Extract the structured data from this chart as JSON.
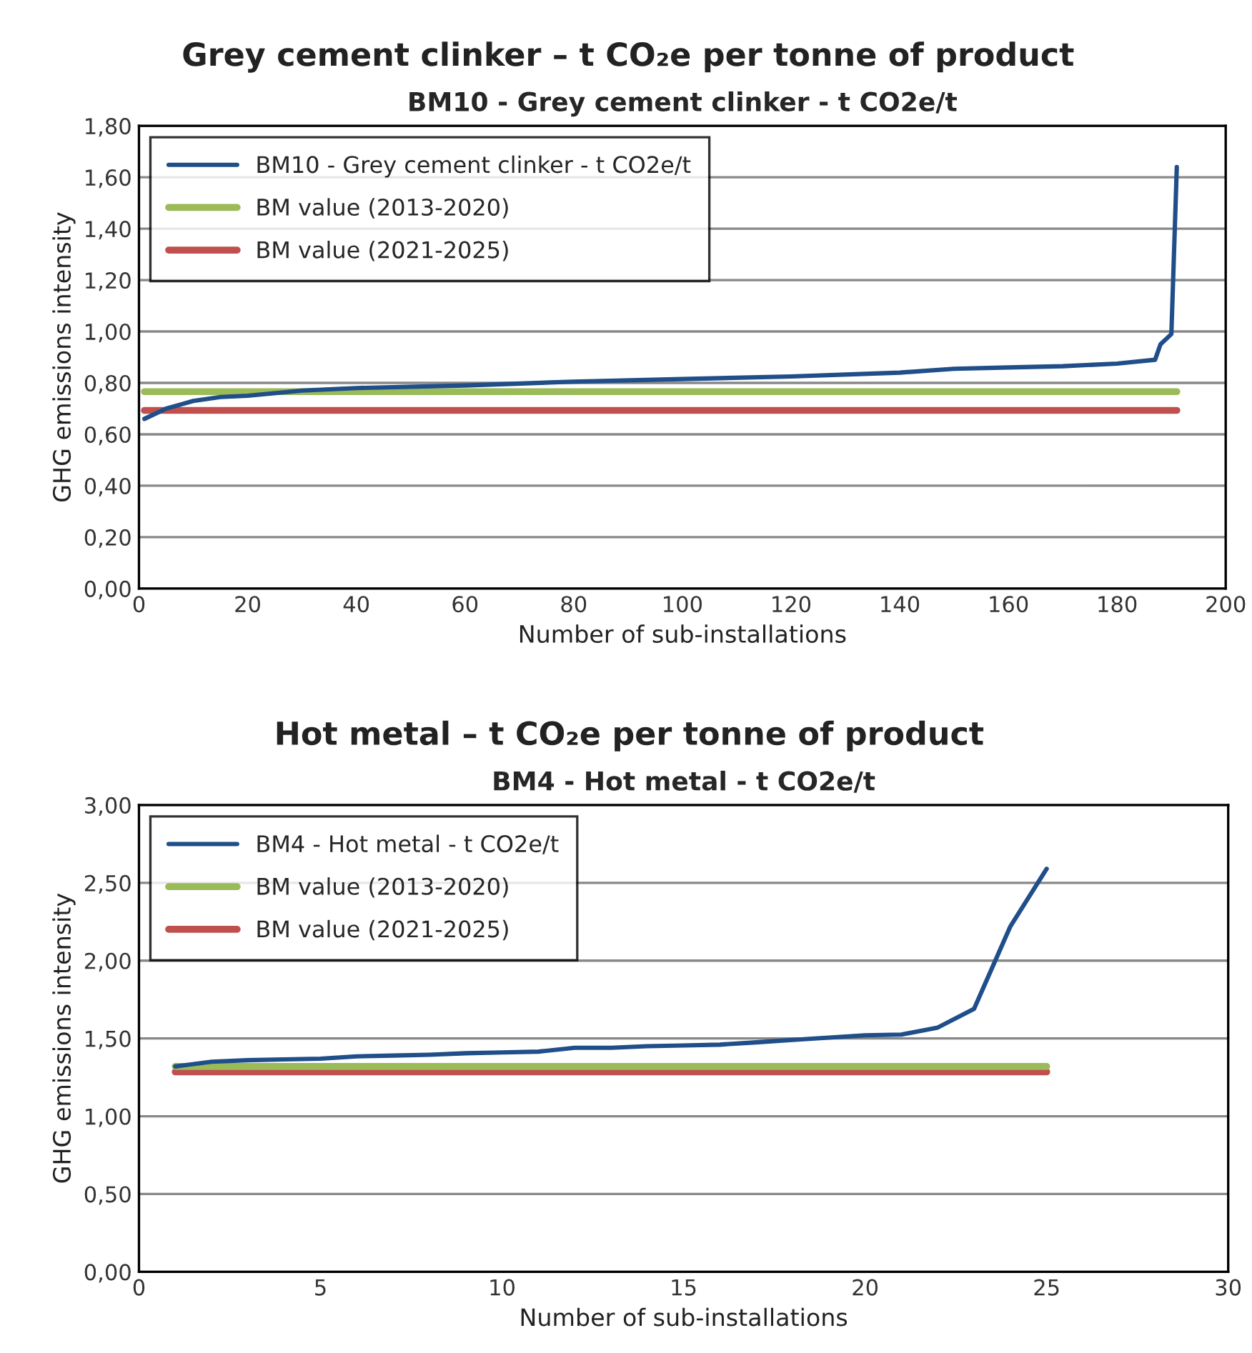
{
  "chart_data": [
    {
      "type": "line",
      "title": "Grey cement clinker – t CO₂e per tonne of product",
      "subtitle": "BM10 - Grey cement clinker - t CO2e/t",
      "xlabel": "Number of sub-installations",
      "ylabel": "GHG emissions intensity",
      "series": [
        {
          "name": "BM10 - Grey cement clinker - t CO2e/t",
          "color": "#1f4e89",
          "x": [
            1,
            5,
            10,
            15,
            20,
            30,
            40,
            60,
            80,
            100,
            120,
            140,
            150,
            160,
            170,
            180,
            187,
            188,
            190,
            191
          ],
          "values": [
            0.66,
            0.7,
            0.73,
            0.745,
            0.75,
            0.77,
            0.78,
            0.79,
            0.805,
            0.815,
            0.825,
            0.84,
            0.855,
            0.86,
            0.865,
            0.875,
            0.89,
            0.95,
            0.99,
            1.64
          ]
        },
        {
          "name": "BM value (2013-2020)",
          "color": "#9bbb59",
          "x": [
            1,
            191
          ],
          "values": [
            0.766,
            0.766
          ]
        },
        {
          "name": "BM value (2021-2025)",
          "color": "#c0504d",
          "x": [
            1,
            191
          ],
          "values": [
            0.693,
            0.693
          ]
        }
      ],
      "xlim": [
        0,
        200
      ],
      "xticks": [
        0,
        20,
        40,
        60,
        80,
        100,
        120,
        140,
        160,
        180,
        200
      ],
      "ylim": [
        0,
        1.8
      ],
      "yticks": [
        {
          "value": 0,
          "label": "0,00"
        },
        {
          "value": 0.2,
          "label": "0,20"
        },
        {
          "value": 0.4,
          "label": "0,40"
        },
        {
          "value": 0.6,
          "label": "0,60"
        },
        {
          "value": 0.8,
          "label": "0,80"
        },
        {
          "value": 1.0,
          "label": "1,00"
        },
        {
          "value": 1.2,
          "label": "1,20"
        },
        {
          "value": 1.4,
          "label": "1,40"
        },
        {
          "value": 1.6,
          "label": "1,60"
        },
        {
          "value": 1.8,
          "label": "1,80"
        }
      ],
      "grid": "y",
      "legend": "top left",
      "marker": "none",
      "line_style": "solid"
    },
    {
      "type": "line",
      "title": "Hot metal – t CO₂e per tonne of product",
      "subtitle": "BM4 - Hot metal - t CO2e/t",
      "xlabel": "Number of sub-installations",
      "ylabel": "GHG emissions intensity",
      "series": [
        {
          "name": "BM4 - Hot metal - t CO2e/t",
          "color": "#1f4e89",
          "x": [
            1,
            2,
            3,
            4,
            5,
            6,
            7,
            8,
            9,
            10,
            11,
            12,
            13,
            14,
            15,
            16,
            17,
            18,
            19,
            20,
            21,
            22,
            23,
            24,
            25
          ],
          "values": [
            1.32,
            1.35,
            1.36,
            1.365,
            1.37,
            1.385,
            1.39,
            1.395,
            1.405,
            1.41,
            1.415,
            1.44,
            1.44,
            1.45,
            1.455,
            1.46,
            1.475,
            1.49,
            1.505,
            1.52,
            1.525,
            1.57,
            1.69,
            2.22,
            2.59
          ]
        },
        {
          "name": "BM value (2013-2020)",
          "color": "#9bbb59",
          "x": [
            1,
            25
          ],
          "values": [
            1.32,
            1.32
          ]
        },
        {
          "name": "BM value (2021-2025)",
          "color": "#c0504d",
          "x": [
            1,
            25
          ],
          "values": [
            1.285,
            1.285
          ]
        }
      ],
      "xlim": [
        0,
        30
      ],
      "xticks": [
        0,
        5,
        10,
        15,
        20,
        25,
        30
      ],
      "ylim": [
        0,
        3.0
      ],
      "yticks": [
        {
          "value": 0,
          "label": "0,00"
        },
        {
          "value": 0.5,
          "label": "0,50"
        },
        {
          "value": 1.0,
          "label": "1,00"
        },
        {
          "value": 1.5,
          "label": "1,50"
        },
        {
          "value": 2.0,
          "label": "2,00"
        },
        {
          "value": 2.5,
          "label": "2,50"
        },
        {
          "value": 3.0,
          "label": "3,00"
        }
      ],
      "grid": "y",
      "legend": "top left",
      "marker": "none",
      "line_style": "solid"
    }
  ]
}
